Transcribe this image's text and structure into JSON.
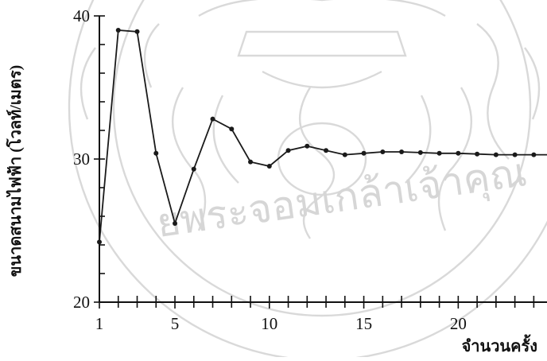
{
  "chart_data": {
    "type": "line",
    "title": "",
    "xlabel": "จำนวนครั้ง",
    "ylabel": "ขนาดสนามไฟฟ้า (โวลท์/เมตร)",
    "xlim": [
      1,
      24.7
    ],
    "ylim": [
      20,
      40
    ],
    "x_ticks": [
      1,
      5,
      10,
      15,
      20
    ],
    "x_tick_labels": [
      "1",
      "5",
      "10",
      "15",
      "20"
    ],
    "y_ticks": [
      20,
      30,
      40
    ],
    "y_tick_labels": [
      "20",
      "30",
      "40"
    ],
    "grid": false,
    "legend": "none",
    "series": [
      {
        "color": "#1a1a1a",
        "x": [
          1,
          2,
          3,
          4,
          5,
          6,
          7,
          8,
          9,
          10,
          11,
          12,
          13,
          14,
          15,
          16,
          17,
          18,
          19,
          20,
          21,
          22,
          23,
          24,
          24.7
        ],
        "y": [
          24.2,
          39.0,
          38.9,
          30.4,
          25.5,
          29.3,
          32.8,
          32.1,
          29.8,
          29.5,
          30.6,
          30.9,
          30.6,
          30.3,
          30.4,
          30.5,
          30.5,
          30.45,
          30.4,
          30.4,
          30.35,
          30.3,
          30.3,
          30.3,
          30.3
        ]
      }
    ]
  }
}
